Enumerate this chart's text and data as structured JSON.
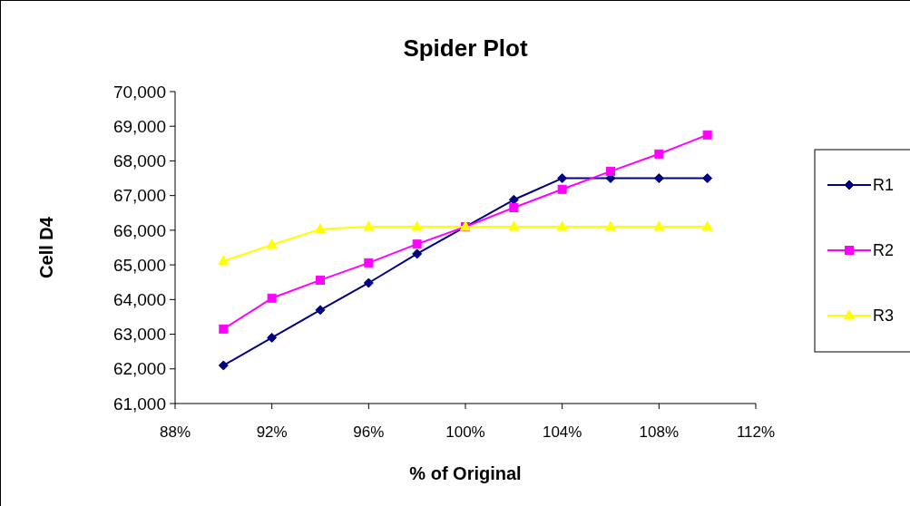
{
  "chart_data": {
    "type": "line",
    "title": "Spider Plot",
    "xlabel": "% of Original",
    "ylabel": "Cell D4",
    "x": [
      0.9,
      0.92,
      0.94,
      0.96,
      0.98,
      1.0,
      1.02,
      1.04,
      1.06,
      1.08,
      1.1
    ],
    "series": [
      {
        "name": "R1",
        "color": "#000080",
        "marker": "diamond",
        "values": [
          62100,
          62900,
          63700,
          64480,
          65320,
          66100,
          66880,
          67500,
          67500,
          67500,
          67500
        ]
      },
      {
        "name": "R2",
        "color": "#ff00ff",
        "marker": "square",
        "values": [
          63150,
          64040,
          64560,
          65060,
          65600,
          66100,
          66650,
          67180,
          67700,
          68200,
          68750
        ]
      },
      {
        "name": "R3",
        "color": "#ffff00",
        "marker": "triangle",
        "values": [
          65110,
          65580,
          66030,
          66100,
          66100,
          66100,
          66100,
          66100,
          66100,
          66100,
          66100
        ]
      }
    ],
    "xlim": [
      0.88,
      1.12
    ],
    "xticks": [
      {
        "value": 0.88,
        "label": "88%"
      },
      {
        "value": 0.92,
        "label": "92%"
      },
      {
        "value": 0.96,
        "label": "96%"
      },
      {
        "value": 1.0,
        "label": "100%"
      },
      {
        "value": 1.04,
        "label": "104%"
      },
      {
        "value": 1.08,
        "label": "108%"
      },
      {
        "value": 1.12,
        "label": "112%"
      }
    ],
    "ylim": [
      61000,
      70000
    ],
    "yticks": [
      {
        "value": 61000,
        "label": "61,000"
      },
      {
        "value": 62000,
        "label": "62,000"
      },
      {
        "value": 63000,
        "label": "63,000"
      },
      {
        "value": 64000,
        "label": "64,000"
      },
      {
        "value": 65000,
        "label": "65,000"
      },
      {
        "value": 66000,
        "label": "66,000"
      },
      {
        "value": 67000,
        "label": "67,000"
      },
      {
        "value": 68000,
        "label": "68,000"
      },
      {
        "value": 69000,
        "label": "69,000"
      },
      {
        "value": 70000,
        "label": "70,000"
      }
    ],
    "grid": false,
    "legend": "right",
    "line_style": "solid"
  }
}
